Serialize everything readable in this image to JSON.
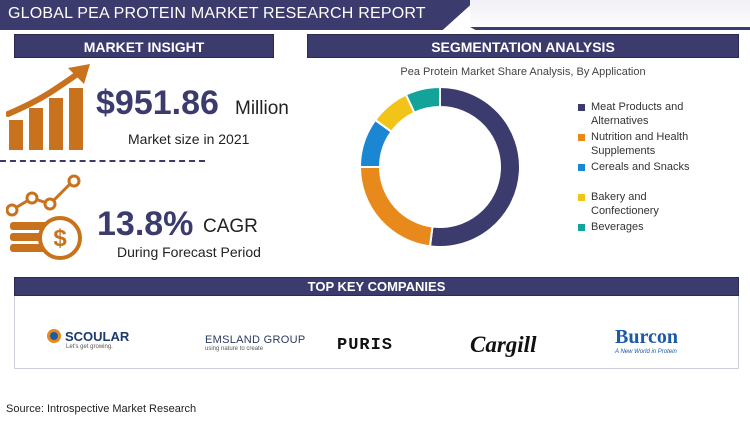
{
  "header": {
    "title": "GLOBAL PEA PROTEIN MARKET RESEARCH REPORT"
  },
  "market_insight": {
    "heading": "MARKET INSIGHT",
    "value": "$951.86",
    "unit": "Million",
    "subtitle": "Market size in 2021",
    "cagr_value": "13.8%",
    "cagr_label": "CAGR",
    "cagr_subtitle": "During Forecast Period"
  },
  "segmentation": {
    "heading": "SEGMENTATION ANALYSIS"
  },
  "chart_data": {
    "type": "pie",
    "variant": "donut",
    "title": "Pea Protein Market Share Analysis, By Application",
    "legend_position": "right",
    "categories": [
      "Meat Products and Alternatives",
      "Nutrition and Health Supplements",
      "Cereals and Snacks",
      "Bakery and Confectionery",
      "Beverages"
    ],
    "values": [
      52,
      23,
      10,
      8,
      7
    ],
    "colors": [
      "#3b3b6e",
      "#e8891b",
      "#1b87d2",
      "#f2c418",
      "#14a39a"
    ]
  },
  "legend": {
    "items": [
      {
        "line1": "Meat Products and",
        "line2": "Alternatives"
      },
      {
        "line1": "Nutrition and Health",
        "line2": "Supplements"
      },
      {
        "line1": "Cereals and Snacks",
        "line2": ""
      },
      {
        "line1": "Bakery and",
        "line2": "Confectionery"
      },
      {
        "line1": "Beverages",
        "line2": ""
      }
    ]
  },
  "companies": {
    "heading": "TOP KEY COMPANIES",
    "logos": [
      {
        "name": "SCOULAR",
        "tagline": "Let's get growing."
      },
      {
        "name": "EMSLAND GROUP",
        "tagline": "using nature to create"
      },
      {
        "name": "PURIS",
        "tagline": ""
      },
      {
        "name": "Cargill",
        "tagline": ""
      },
      {
        "name": "Burcon",
        "tagline": "A New World in Protein"
      }
    ]
  },
  "source": "Source: Introspective Market Research",
  "colors": {
    "navy": "#3b3b6e",
    "orange": "#c8721e"
  },
  "icons": [
    "growth-bar-chart-icon",
    "dollar-coins-icon"
  ]
}
